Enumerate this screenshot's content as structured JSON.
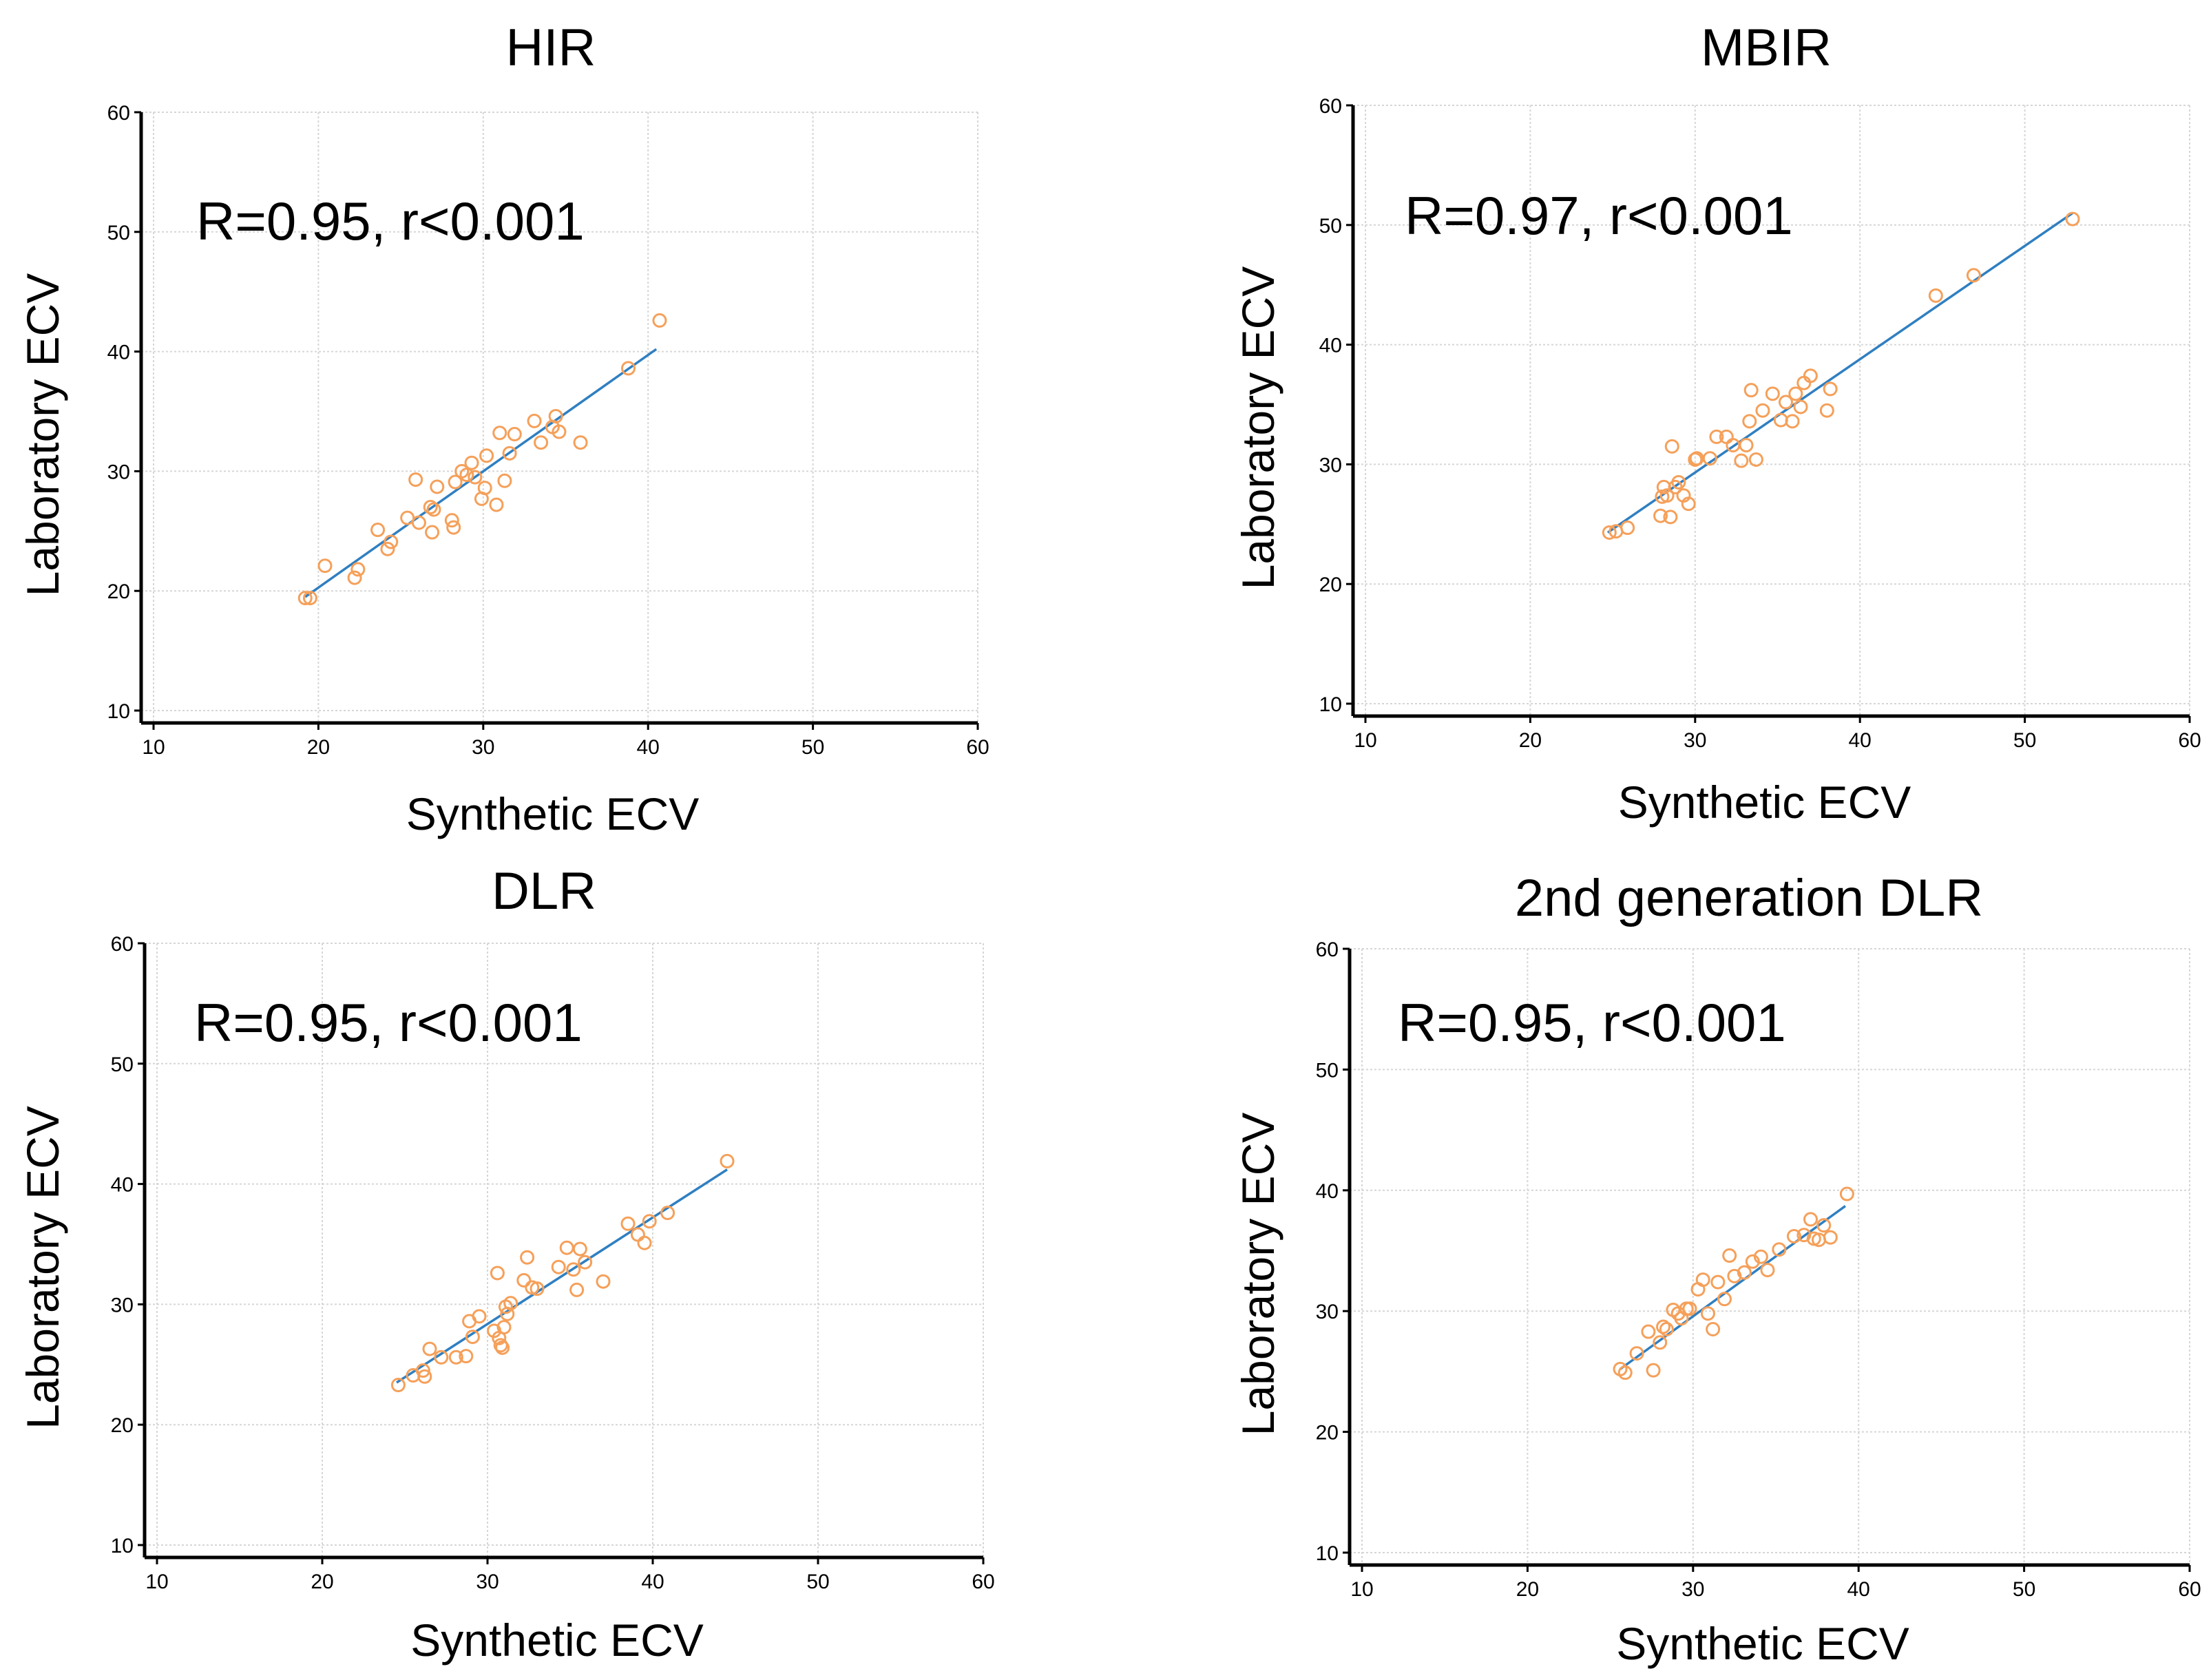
{
  "colors": {
    "points": "#f5a05a",
    "fit": "#2f7fc1"
  },
  "axis_labels": {
    "x": "Synthetic ECV",
    "y": "Laboratory ECV"
  },
  "chart_data": [
    {
      "type": "scatter",
      "title": "HIR",
      "annotation": "R=0.95,  r<0.001",
      "xlabel": "Synthetic ECV",
      "ylabel": "Laboratory ECV",
      "xlim": [
        10,
        60
      ],
      "ylim": [
        10,
        60
      ],
      "xticks": [
        10,
        20,
        30,
        40,
        50,
        60
      ],
      "yticks": [
        10,
        20,
        30,
        40,
        50,
        60
      ],
      "grid": true,
      "x": [
        19.2,
        19.5,
        20.4,
        22.2,
        22.4,
        23.6,
        24.2,
        24.4,
        25.4,
        25.9,
        26.1,
        26.8,
        26.9,
        27.0,
        27.2,
        28.1,
        28.2,
        28.3,
        28.7,
        29.0,
        29.3,
        29.5,
        29.9,
        30.1,
        30.2,
        30.8,
        31.0,
        31.3,
        31.6,
        31.9,
        33.1,
        33.5,
        34.2,
        34.4,
        34.6,
        35.9,
        38.8,
        40.7
      ],
      "y": [
        19.4,
        19.4,
        22.1,
        21.1,
        21.8,
        25.1,
        23.5,
        24.1,
        26.1,
        29.3,
        25.7,
        27.0,
        24.9,
        26.8,
        28.7,
        25.9,
        25.3,
        29.1,
        30.0,
        29.7,
        30.7,
        29.5,
        27.7,
        28.6,
        31.3,
        27.2,
        33.2,
        29.2,
        31.5,
        33.1,
        34.2,
        32.4,
        33.7,
        34.6,
        33.3,
        32.4,
        38.6,
        42.6
      ],
      "fit": {
        "x": [
          19.2,
          40.5
        ],
        "y": [
          19.5,
          40.2
        ]
      }
    },
    {
      "type": "scatter",
      "title": "MBIR",
      "annotation": "R=0.97,  r<0.001",
      "xlabel": "Synthetic ECV",
      "ylabel": "Laboratory ECV",
      "xlim": [
        10,
        60
      ],
      "ylim": [
        10,
        60
      ],
      "xticks": [
        10,
        20,
        30,
        40,
        50,
        60
      ],
      "yticks": [
        10,
        20,
        30,
        40,
        50,
        60
      ],
      "grid": true,
      "x": [
        24.8,
        25.2,
        25.9,
        27.9,
        28.0,
        28.1,
        28.3,
        28.5,
        28.6,
        28.8,
        29.0,
        29.3,
        29.6,
        30.0,
        30.1,
        30.9,
        31.3,
        31.9,
        32.3,
        32.8,
        33.1,
        33.3,
        33.4,
        33.7,
        34.1,
        34.7,
        35.2,
        35.5,
        35.9,
        36.1,
        36.4,
        36.6,
        37.0,
        38.0,
        38.2,
        44.6,
        46.9,
        52.9
      ],
      "y": [
        24.3,
        24.4,
        24.7,
        25.7,
        27.3,
        28.1,
        27.4,
        25.6,
        31.5,
        28.1,
        28.5,
        27.4,
        26.7,
        30.4,
        30.5,
        30.5,
        32.3,
        32.3,
        31.6,
        30.3,
        31.6,
        33.6,
        36.2,
        30.4,
        34.5,
        35.9,
        33.7,
        35.2,
        33.6,
        35.9,
        34.8,
        36.8,
        37.4,
        34.5,
        36.3,
        44.1,
        45.8,
        50.5
      ],
      "fit": {
        "x": [
          24.7,
          52.9
        ],
        "y": [
          24.3,
          51.0
        ]
      }
    },
    {
      "type": "scatter",
      "title": "DLR",
      "annotation": "R=0.95,  r<0.001",
      "xlabel": "Synthetic ECV",
      "ylabel": "Laboratory ECV",
      "xlim": [
        10,
        60
      ],
      "ylim": [
        10,
        60
      ],
      "xticks": [
        10,
        20,
        30,
        40,
        50,
        60
      ],
      "yticks": [
        10,
        20,
        30,
        40,
        50,
        60
      ],
      "grid": true,
      "x": [
        24.6,
        25.5,
        26.1,
        26.2,
        26.5,
        27.2,
        28.1,
        28.7,
        28.9,
        29.1,
        29.5,
        30.4,
        30.6,
        30.7,
        30.8,
        30.9,
        31.0,
        31.1,
        31.2,
        31.4,
        32.2,
        32.4,
        32.7,
        33.0,
        34.3,
        34.8,
        35.2,
        35.4,
        35.6,
        35.9,
        37.0,
        38.5,
        39.1,
        39.5,
        39.8,
        40.9,
        44.5
      ],
      "y": [
        23.3,
        24.1,
        24.5,
        24.0,
        26.3,
        25.6,
        25.6,
        25.7,
        28.6,
        27.3,
        29.0,
        27.8,
        32.6,
        27.2,
        26.6,
        26.4,
        28.1,
        29.8,
        29.2,
        30.1,
        32.0,
        33.9,
        31.4,
        31.3,
        33.1,
        34.7,
        32.9,
        31.2,
        34.6,
        33.5,
        31.9,
        36.7,
        35.8,
        35.1,
        36.9,
        37.6,
        41.9
      ],
      "fit": {
        "x": [
          24.5,
          44.5
        ],
        "y": [
          23.5,
          41.2
        ]
      }
    },
    {
      "type": "scatter",
      "title": "2nd generation DLR",
      "annotation": "R=0.95,  r<0.001",
      "xlabel": "Synthetic ECV",
      "ylabel": "Laboratory ECV",
      "xlim": [
        10,
        60
      ],
      "ylim": [
        10,
        60
      ],
      "xticks": [
        10,
        20,
        30,
        40,
        50,
        60
      ],
      "yticks": [
        10,
        20,
        30,
        40,
        50,
        60
      ],
      "grid": true,
      "x": [
        25.6,
        25.9,
        26.6,
        27.3,
        27.6,
        28.0,
        28.2,
        28.4,
        28.8,
        29.1,
        29.3,
        29.6,
        29.8,
        30.3,
        30.6,
        30.9,
        31.2,
        31.5,
        31.9,
        32.2,
        32.5,
        33.1,
        33.6,
        34.1,
        34.5,
        35.2,
        36.1,
        36.7,
        37.1,
        37.3,
        37.6,
        37.9,
        38.3,
        39.3
      ],
      "y": [
        25.2,
        24.9,
        26.5,
        28.3,
        25.1,
        27.4,
        28.7,
        28.5,
        30.1,
        29.8,
        29.4,
        30.2,
        30.2,
        31.8,
        32.6,
        29.8,
        28.5,
        32.4,
        31.0,
        34.6,
        32.9,
        33.2,
        34.1,
        34.5,
        33.4,
        35.1,
        36.2,
        36.3,
        37.6,
        36.0,
        35.9,
        37.1,
        36.1,
        39.7
      ],
      "fit": {
        "x": [
          25.6,
          39.2
        ],
        "y": [
          25.2,
          38.7
        ]
      }
    }
  ]
}
